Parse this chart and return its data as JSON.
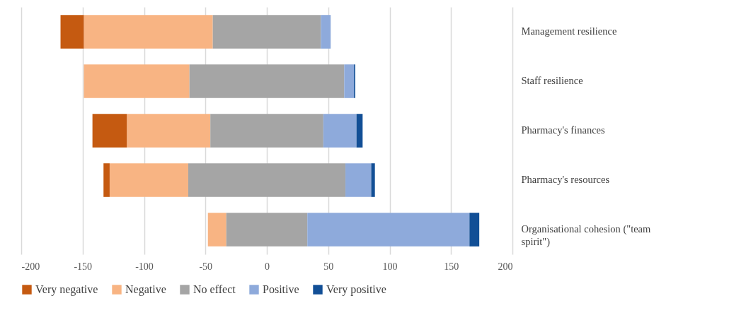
{
  "chart_data": {
    "type": "bar",
    "orientation": "horizontal",
    "stacked": true,
    "categories": [
      "Management resilience",
      "Staff resilience",
      "Pharmacy's finances",
      "Pharmacy's resources",
      "Organisational cohesion (\"team spirit\")"
    ],
    "series": [
      {
        "color": "#a5a5a5",
        "values": [
          -44,
          -63,
          -46,
          -64,
          -33
        ]
      },
      {
        "name": "Negative",
        "color": "#f8b483",
        "values": [
          -105,
          -86,
          -68,
          -64,
          -15
        ]
      },
      {
        "name": "Very negative",
        "color": "#c55a11",
        "values": [
          -19,
          0,
          -28,
          -5,
          0
        ]
      },
      {
        "name": "No effect",
        "color": "#a5a5a5",
        "values": [
          44,
          63,
          46,
          64,
          33
        ]
      },
      {
        "name": "Positive",
        "color": "#8eaadb",
        "values": [
          8,
          8,
          27,
          21,
          132
        ]
      },
      {
        "name": "Very positive",
        "color": "#124f96",
        "values": [
          0,
          1,
          5,
          3,
          8
        ]
      }
    ],
    "xlim": [
      -200,
      200
    ],
    "xticks": [
      -200,
      -150,
      -100,
      -50,
      0,
      50,
      100,
      150,
      200
    ],
    "grid": "x",
    "legend": "bottom"
  }
}
